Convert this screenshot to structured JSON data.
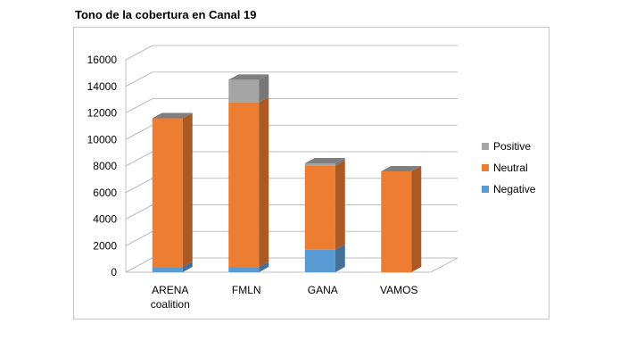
{
  "chart_data": {
    "type": "bar",
    "stacked": true,
    "three_d": true,
    "title": "Tono de la cobertura en Canal 19",
    "categories": [
      [
        "ARENA",
        "coalition"
      ],
      [
        "FMLN"
      ],
      [
        "GANA"
      ],
      [
        "VAMOS"
      ]
    ],
    "series": [
      {
        "name": "Negative",
        "color": "#5b9bd5",
        "values": [
          400,
          400,
          1700,
          0
        ]
      },
      {
        "name": "Neutral",
        "color": "#ed7d31",
        "values": [
          11200,
          12400,
          6300,
          7600
        ]
      },
      {
        "name": "Positive",
        "color": "#a5a5a5",
        "values": [
          0,
          1700,
          200,
          0
        ]
      }
    ],
    "ylim": [
      0,
      16000
    ],
    "yticks": [
      0,
      2000,
      4000,
      6000,
      8000,
      10000,
      12000,
      14000,
      16000
    ],
    "grid": true,
    "legend_position": "right",
    "legend_order": [
      "Positive",
      "Neutral",
      "Negative"
    ],
    "colors": {
      "grid": "#bfbfbf",
      "top_face": "#7f7f7f"
    }
  }
}
